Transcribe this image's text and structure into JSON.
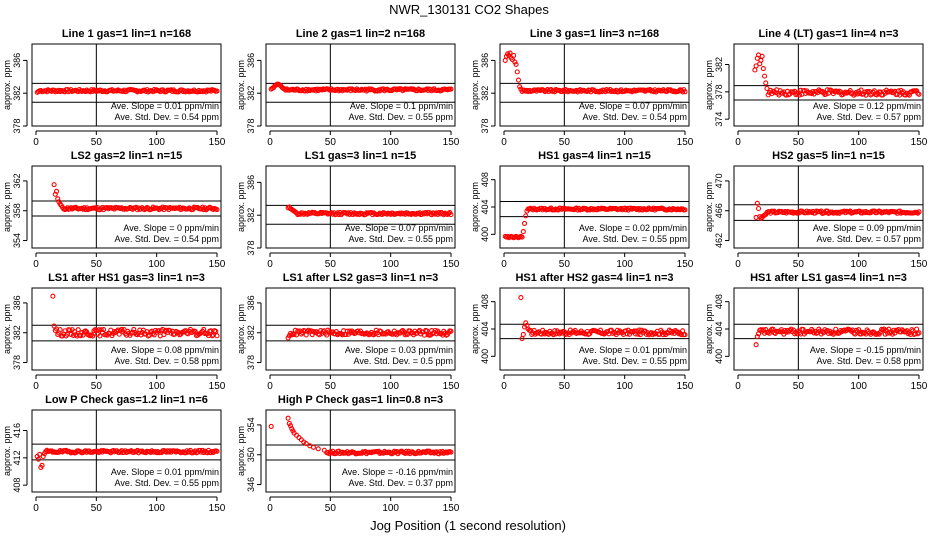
{
  "figure": {
    "title": "NWR_130131   CO2 Shapes",
    "xlabel": "Jog Position (1 second resolution)",
    "ylabel": "approx. ppm",
    "point_color": "#ff0000",
    "slope_label": "Ave. Slope =",
    "slope_unit": "ppm/min",
    "std_label": "Ave. Std. Dev. =",
    "std_unit": "ppm"
  },
  "chart_data": [
    {
      "type": "scatter",
      "title": "Line 1 gas=1 lin=1 n=168",
      "xlim": [
        0,
        150
      ],
      "xticks": [
        0,
        50,
        100,
        150
      ],
      "ylim": [
        378,
        388
      ],
      "yticks": [
        378,
        382,
        386
      ],
      "hlines": [
        383.2,
        380.9
      ],
      "vline": 50,
      "slope": "0.01",
      "std": "0.54",
      "base": 382.3,
      "noise": 0.15,
      "start": 1,
      "init": [
        382.1,
        382.2,
        382.3
      ]
    },
    {
      "type": "scatter",
      "title": "Line 2 gas=1 lin=2 n=168",
      "xlim": [
        0,
        150
      ],
      "xticks": [
        0,
        50,
        100,
        150
      ],
      "ylim": [
        378,
        388
      ],
      "yticks": [
        378,
        382,
        386
      ],
      "hlines": [
        383.2,
        380.9
      ],
      "vline": 50,
      "slope": "0.1",
      "std": "0.55",
      "base": 382.4,
      "noise": 0.15,
      "start": 1,
      "init": [
        382.5,
        382.6,
        382.7,
        382.9,
        383.0,
        383.1,
        383.1,
        383.0,
        382.9,
        382.7,
        382.6,
        382.5
      ]
    },
    {
      "type": "scatter",
      "title": "Line 3 gas=1 lin=3 n=168",
      "xlim": [
        0,
        150
      ],
      "xticks": [
        0,
        50,
        100,
        150
      ],
      "ylim": [
        378,
        388
      ],
      "yticks": [
        378,
        382,
        386
      ],
      "hlines": [
        383.2,
        380.9
      ],
      "vline": 50,
      "slope": "0.07",
      "std": "0.54",
      "base": 382.3,
      "noise": 0.15,
      "start": 1,
      "init": [
        386.0,
        386.5,
        386.8,
        386.6,
        386.9,
        386.3,
        386.1,
        386.6,
        385.8,
        385.5,
        384.6,
        383.6,
        382.8,
        382.5
      ]
    },
    {
      "type": "scatter",
      "title": "Line 4 (LT) gas=1 lin=4 n=3",
      "xlim": [
        0,
        150
      ],
      "xticks": [
        0,
        50,
        100,
        150
      ],
      "ylim": [
        373,
        385
      ],
      "yticks": [
        374,
        378,
        382
      ],
      "hlines": [
        378.9,
        376.8
      ],
      "vline": 50,
      "slope": "0.12",
      "std": "0.57",
      "base": 377.9,
      "noise": 0.4,
      "start": 14,
      "init": [
        381.2,
        381.8,
        382.9,
        383.4,
        382.1,
        382.6,
        383.2,
        381.4,
        380.3,
        379.3,
        378.5
      ]
    },
    {
      "type": "scatter",
      "title": "LS2 gas=2 lin=1 n=15",
      "xlim": [
        0,
        150
      ],
      "xticks": [
        0,
        50,
        100,
        150
      ],
      "ylim": [
        353,
        364
      ],
      "yticks": [
        354,
        358,
        362
      ],
      "hlines": [
        359.3,
        357.3
      ],
      "vline": 50,
      "slope": "0",
      "std": "0.54",
      "base": 358.3,
      "noise": 0.18,
      "start": 15,
      "init": [
        361.5,
        360.2,
        360.6,
        359.6,
        359.2,
        358.9,
        358.7
      ]
    },
    {
      "type": "scatter",
      "title": "LS1 gas=3 lin=1 n=15",
      "xlim": [
        0,
        150
      ],
      "xticks": [
        0,
        50,
        100,
        150
      ],
      "ylim": [
        378,
        388
      ],
      "yticks": [
        378,
        382,
        386
      ],
      "hlines": [
        383.2,
        380.9
      ],
      "vline": 50,
      "slope": "0.07",
      "std": "0.55",
      "base": 382.2,
      "noise": 0.15,
      "start": 15,
      "init": [
        382.9,
        383.0,
        382.8,
        382.7,
        382.6,
        382.5,
        382.4
      ]
    },
    {
      "type": "scatter",
      "title": "HS1 gas=4 lin=1 n=15",
      "xlim": [
        0,
        150
      ],
      "xticks": [
        0,
        50,
        100,
        150
      ],
      "ylim": [
        398,
        410
      ],
      "yticks": [
        400,
        404,
        408
      ],
      "hlines": [
        404.8,
        402.6
      ],
      "vline": 50,
      "slope": "0.02",
      "std": "0.55",
      "base": 403.7,
      "noise": 0.15,
      "start": 1,
      "init": [
        399.7,
        399.6,
        399.7,
        399.5,
        399.6,
        399.7,
        399.6,
        399.5,
        399.6,
        399.7,
        399.6,
        399.5,
        399.6,
        399.7,
        399.6,
        400.4,
        401.6,
        402.7,
        403.4,
        403.7
      ]
    },
    {
      "type": "scatter",
      "title": "HS2 gas=5 lin=1 n=15",
      "xlim": [
        0,
        150
      ],
      "xticks": [
        0,
        50,
        100,
        150
      ],
      "ylim": [
        461,
        472
      ],
      "yticks": [
        462,
        466,
        470
      ],
      "hlines": [
        466.8,
        464.7
      ],
      "vline": 50,
      "slope": "0.09",
      "std": "0.57",
      "base": 465.8,
      "noise": 0.16,
      "start": 15,
      "init": [
        465.1,
        467.0,
        466.3,
        465.2,
        465.0,
        465.1,
        465.3,
        465.4,
        465.5
      ]
    },
    {
      "type": "scatter",
      "title": "LS1 after HS1 gas=3 lin=1 n=3",
      "xlim": [
        0,
        150
      ],
      "xticks": [
        0,
        50,
        100,
        150
      ],
      "ylim": [
        377,
        388
      ],
      "yticks": [
        378,
        382,
        386
      ],
      "hlines": [
        383.0,
        380.9
      ],
      "vline": 50,
      "slope": "0.08",
      "std": "0.58",
      "base": 382.0,
      "noise": 0.45,
      "start": 14,
      "init": [
        386.9,
        382.9,
        382.3,
        382.5
      ]
    },
    {
      "type": "scatter",
      "title": "LS1 after LS2 gas=3 lin=1 n=3",
      "xlim": [
        0,
        150
      ],
      "xticks": [
        0,
        50,
        100,
        150
      ],
      "ylim": [
        377,
        388
      ],
      "yticks": [
        378,
        382,
        386
      ],
      "hlines": [
        383.0,
        380.9
      ],
      "vline": 50,
      "slope": "0.03",
      "std": "0.5",
      "base": 382.0,
      "noise": 0.35,
      "start": 15,
      "init": [
        381.3,
        381.6,
        381.9
      ]
    },
    {
      "type": "scatter",
      "title": "HS1 after HS2 gas=4 lin=1 n=3",
      "xlim": [
        0,
        150
      ],
      "xticks": [
        0,
        50,
        100,
        150
      ],
      "ylim": [
        398,
        410
      ],
      "yticks": [
        400,
        404,
        408
      ],
      "hlines": [
        404.7,
        402.6
      ],
      "vline": 50,
      "slope": "0.01",
      "std": "0.55",
      "base": 403.5,
      "noise": 0.35,
      "start": 14,
      "init": [
        408.6,
        402.6,
        403.2,
        404.3,
        404.9,
        404.5,
        404.0,
        403.8
      ]
    },
    {
      "type": "scatter",
      "title": "HS1 after LS1 gas=4 lin=1 n=3",
      "xlim": [
        0,
        150
      ],
      "xticks": [
        0,
        50,
        100,
        150
      ],
      "ylim": [
        398,
        410
      ],
      "yticks": [
        400,
        404,
        408
      ],
      "hlines": [
        404.7,
        402.6
      ],
      "vline": 50,
      "slope": "-0.15",
      "std": "0.58",
      "base": 403.6,
      "noise": 0.4,
      "start": 15,
      "init": [
        401.7,
        402.9,
        403.3
      ]
    },
    {
      "type": "scatter",
      "title": "Low P Check gas=1.2 lin=1 n=6",
      "xlim": [
        0,
        150
      ],
      "xticks": [
        0,
        50,
        100,
        150
      ],
      "ylim": [
        407,
        419
      ],
      "yticks": [
        408,
        412,
        416
      ],
      "hlines": [
        414.0,
        411.7
      ],
      "vline": 50,
      "slope": "0.01",
      "std": "0.55",
      "base": 412.9,
      "noise": 0.18,
      "start": 1,
      "init": [
        412.2,
        411.8,
        412.5,
        410.6,
        410.9,
        412.2,
        412.6,
        412.9,
        413.1
      ]
    },
    {
      "type": "scatter",
      "title": "High P Check gas=1 lin=0.8 n=3",
      "xlim": [
        0,
        150
      ],
      "xticks": [
        0,
        50,
        100,
        150
      ],
      "ylim": [
        345,
        356
      ],
      "yticks": [
        346,
        350,
        354
      ],
      "hlines": [
        351.3,
        349.3
      ],
      "vline": 50,
      "slope": "-0.16",
      "std": "0.37",
      "base": 350.3,
      "noise": 0.18,
      "start": 1,
      "initAt": [
        [
          1,
          353.8
        ],
        [
          15,
          354.9
        ],
        [
          16,
          354.2
        ],
        [
          17,
          353.9
        ],
        [
          18,
          353.5
        ],
        [
          19,
          353.2
        ],
        [
          20,
          352.9
        ],
        [
          22,
          352.6
        ],
        [
          24,
          352.3
        ],
        [
          26,
          352.0
        ],
        [
          28,
          351.7
        ],
        [
          30,
          351.5
        ],
        [
          33,
          351.2
        ],
        [
          36,
          351.0
        ],
        [
          40,
          350.8
        ],
        [
          45,
          350.6
        ]
      ],
      "fromX": 47
    }
  ]
}
